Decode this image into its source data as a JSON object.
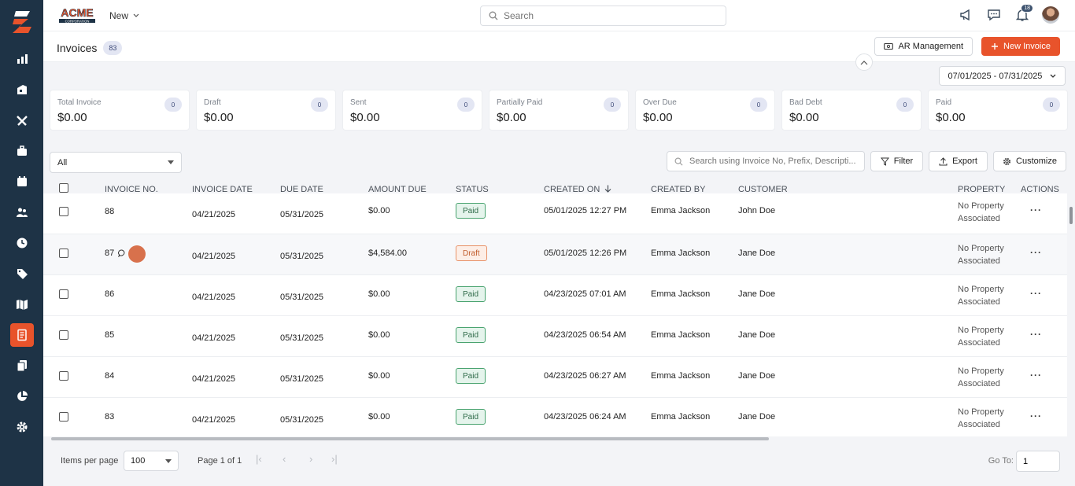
{
  "topbar": {
    "brand": "ACME CORPORATION",
    "new_label": "New",
    "search_placeholder": "Search",
    "notification_count": "18"
  },
  "header": {
    "title": "Invoices",
    "count": "83",
    "ar_label": "AR Management",
    "new_invoice_label": "New Invoice"
  },
  "date_range": "07/01/2025 - 07/31/2025",
  "cards": [
    {
      "label": "Total Invoice",
      "value": "$0.00",
      "count": "0"
    },
    {
      "label": "Draft",
      "value": "$0.00",
      "count": "0"
    },
    {
      "label": "Sent",
      "value": "$0.00",
      "count": "0"
    },
    {
      "label": "Partially Paid",
      "value": "$0.00",
      "count": "0"
    },
    {
      "label": "Over Due",
      "value": "$0.00",
      "count": "0"
    },
    {
      "label": "Bad Debt",
      "value": "$0.00",
      "count": "0"
    },
    {
      "label": "Paid",
      "value": "$0.00",
      "count": "0"
    }
  ],
  "filters": {
    "status_filter": "All",
    "search_placeholder": "Search using Invoice No, Prefix, Descripti...",
    "filter_label": "Filter",
    "export_label": "Export",
    "customize_label": "Customize"
  },
  "table": {
    "columns": [
      "INVOICE NO.",
      "INVOICE DATE",
      "DUE DATE",
      "AMOUNT DUE",
      "STATUS",
      "CREATED ON",
      "CREATED BY",
      "CUSTOMER",
      "PROPERTY",
      "ACTIONS"
    ],
    "rows": [
      {
        "invoice_no": "88",
        "invoice_date": "04/21/2025",
        "due_date": "05/31/2025",
        "amount": "$0.00",
        "status": "Paid",
        "created_on": "05/01/2025 12:27 PM",
        "created_by": "Emma Jackson",
        "customer": "John Doe",
        "property_1": "No Property",
        "property_2": "Associated"
      },
      {
        "invoice_no": "87",
        "invoice_date": "04/21/2025",
        "due_date": "05/31/2025",
        "amount": "$4,584.00",
        "status": "Draft",
        "created_on": "05/01/2025 12:26 PM",
        "created_by": "Emma Jackson",
        "customer": "Jane Doe",
        "property_1": "No Property",
        "property_2": "Associated"
      },
      {
        "invoice_no": "86",
        "invoice_date": "04/21/2025",
        "due_date": "05/31/2025",
        "amount": "$0.00",
        "status": "Paid",
        "created_on": "04/23/2025 07:01 AM",
        "created_by": "Emma Jackson",
        "customer": "Jane Doe",
        "property_1": "No Property",
        "property_2": "Associated"
      },
      {
        "invoice_no": "85",
        "invoice_date": "04/21/2025",
        "due_date": "05/31/2025",
        "amount": "$0.00",
        "status": "Paid",
        "created_on": "04/23/2025 06:54 AM",
        "created_by": "Emma Jackson",
        "customer": "Jane Doe",
        "property_1": "No Property",
        "property_2": "Associated"
      },
      {
        "invoice_no": "84",
        "invoice_date": "04/21/2025",
        "due_date": "05/31/2025",
        "amount": "$0.00",
        "status": "Paid",
        "created_on": "04/23/2025 06:27 AM",
        "created_by": "Emma Jackson",
        "customer": "Jane Doe",
        "property_1": "No Property",
        "property_2": "Associated"
      },
      {
        "invoice_no": "83",
        "invoice_date": "04/21/2025",
        "due_date": "05/31/2025",
        "amount": "$0.00",
        "status": "Paid",
        "created_on": "04/23/2025 06:24 AM",
        "created_by": "Emma Jackson",
        "customer": "Jane Doe",
        "property_1": "No Property",
        "property_2": "Associated"
      }
    ]
  },
  "footer": {
    "items_per_page_label": "Items per page",
    "items_per_page": "100",
    "page_info": "Page 1 of 1",
    "goto_label": "Go To:",
    "goto_value": "1"
  },
  "sidebar": {
    "items": [
      "reports-icon",
      "properties-icon",
      "tools-icon",
      "briefcase-icon",
      "calendar-icon",
      "users-icon",
      "clock-icon",
      "tag-icon",
      "map-icon",
      "invoice-icon",
      "documents-icon",
      "pie-chart-icon",
      "settings-icon"
    ],
    "active": "invoice-icon"
  },
  "colors": {
    "sidebar": "#1e3346",
    "accent": "#e8532b",
    "paid": "#49a36f",
    "draft": "#e8936a"
  }
}
